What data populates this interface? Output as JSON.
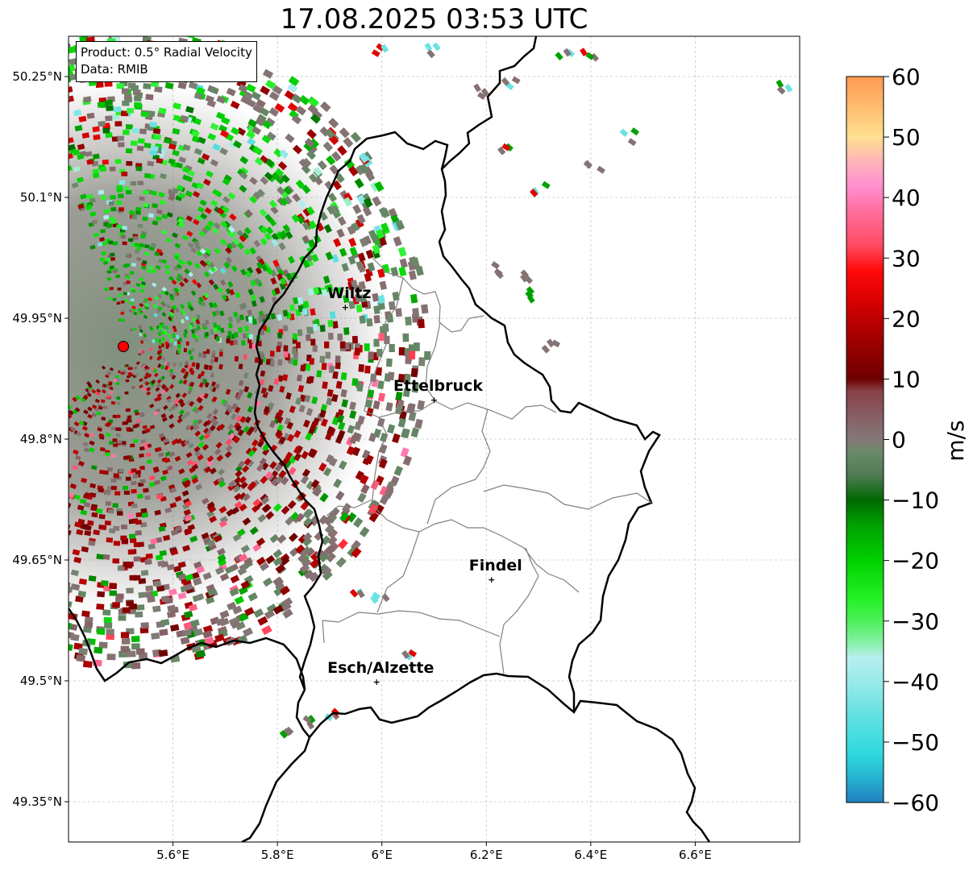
{
  "title": "17.08.2025 03:53 UTC",
  "info": {
    "product": "Product: 0.5° Radial Velocity",
    "data": "Data: RMIB"
  },
  "map": {
    "lon_ticks": [
      {
        "value": 5.6,
        "label": "5.6°E"
      },
      {
        "value": 5.8,
        "label": "5.8°E"
      },
      {
        "value": 6.0,
        "label": "6°E"
      },
      {
        "value": 6.2,
        "label": "6.2°E"
      },
      {
        "value": 6.4,
        "label": "6.4°E"
      },
      {
        "value": 6.6,
        "label": "6.6°E"
      }
    ],
    "lat_ticks": [
      {
        "value": 50.25,
        "label": "50.25°N"
      },
      {
        "value": 50.1,
        "label": "50.1°N"
      },
      {
        "value": 49.95,
        "label": "49.95°N"
      },
      {
        "value": 49.8,
        "label": "49.8°N"
      },
      {
        "value": 49.65,
        "label": "49.65°N"
      },
      {
        "value": 49.5,
        "label": "49.5°N"
      },
      {
        "value": 49.35,
        "label": "49.35°N"
      }
    ],
    "lon_range": [
      5.4,
      6.8
    ],
    "lat_range": [
      49.3,
      50.3
    ],
    "grid": true,
    "radar_site": {
      "lon": 5.505,
      "lat": 49.915
    },
    "cities": [
      {
        "name": "Wiltz",
        "lon": 5.93,
        "lat": 49.965
      },
      {
        "name": "Ettelbruck",
        "lon": 6.1,
        "lat": 49.85
      },
      {
        "name": "Findel",
        "lon": 6.21,
        "lat": 49.627
      },
      {
        "name": "Esch/Alzette",
        "lon": 5.99,
        "lat": 49.5
      }
    ]
  },
  "colorbar": {
    "unit": "m/s",
    "min": -60,
    "max": 60,
    "ticks": [
      {
        "value": 60,
        "label": "60"
      },
      {
        "value": 50,
        "label": "50"
      },
      {
        "value": 40,
        "label": "40"
      },
      {
        "value": 30,
        "label": "30"
      },
      {
        "value": 20,
        "label": "20"
      },
      {
        "value": 10,
        "label": "10"
      },
      {
        "value": 0,
        "label": "0"
      },
      {
        "value": -10,
        "label": "−10"
      },
      {
        "value": -20,
        "label": "−20"
      },
      {
        "value": -30,
        "label": "−30"
      },
      {
        "value": -40,
        "label": "−40"
      },
      {
        "value": -50,
        "label": "−50"
      },
      {
        "value": -60,
        "label": "−60"
      }
    ],
    "stops": [
      {
        "v": -60,
        "c": "#1f7fc0"
      },
      {
        "v": -56,
        "c": "#26b2d0"
      },
      {
        "v": -52,
        "c": "#2ed9de"
      },
      {
        "v": -46,
        "c": "#5fe0e0"
      },
      {
        "v": -40,
        "c": "#9aeaea"
      },
      {
        "v": -36,
        "c": "#b8eef0"
      },
      {
        "v": -34,
        "c": "#8ef0b0"
      },
      {
        "v": -30,
        "c": "#4cf05a"
      },
      {
        "v": -26,
        "c": "#22f022"
      },
      {
        "v": -20,
        "c": "#00d000"
      },
      {
        "v": -14,
        "c": "#00a000"
      },
      {
        "v": -10,
        "c": "#006800"
      },
      {
        "v": -6,
        "c": "#4e7a52"
      },
      {
        "v": -2,
        "c": "#6b8a6a"
      },
      {
        "v": 0,
        "c": "#857878"
      },
      {
        "v": 4,
        "c": "#865e64"
      },
      {
        "v": 8,
        "c": "#8a4048"
      },
      {
        "v": 10,
        "c": "#6e0000"
      },
      {
        "v": 16,
        "c": "#9c0000"
      },
      {
        "v": 22,
        "c": "#d00000"
      },
      {
        "v": 28,
        "c": "#ff0a0a"
      },
      {
        "v": 32,
        "c": "#ff4a60"
      },
      {
        "v": 38,
        "c": "#ff70a0"
      },
      {
        "v": 42,
        "c": "#ff90d0"
      },
      {
        "v": 46,
        "c": "#ffb4b8"
      },
      {
        "v": 50,
        "c": "#ffe090"
      },
      {
        "v": 55,
        "c": "#ffbc70"
      },
      {
        "v": 60,
        "c": "#ff9a50"
      }
    ]
  },
  "colors": {
    "border": "#000000",
    "canton_border": "#808080",
    "grid": "#c8c8c8",
    "radar_marker": "#ff0000"
  }
}
